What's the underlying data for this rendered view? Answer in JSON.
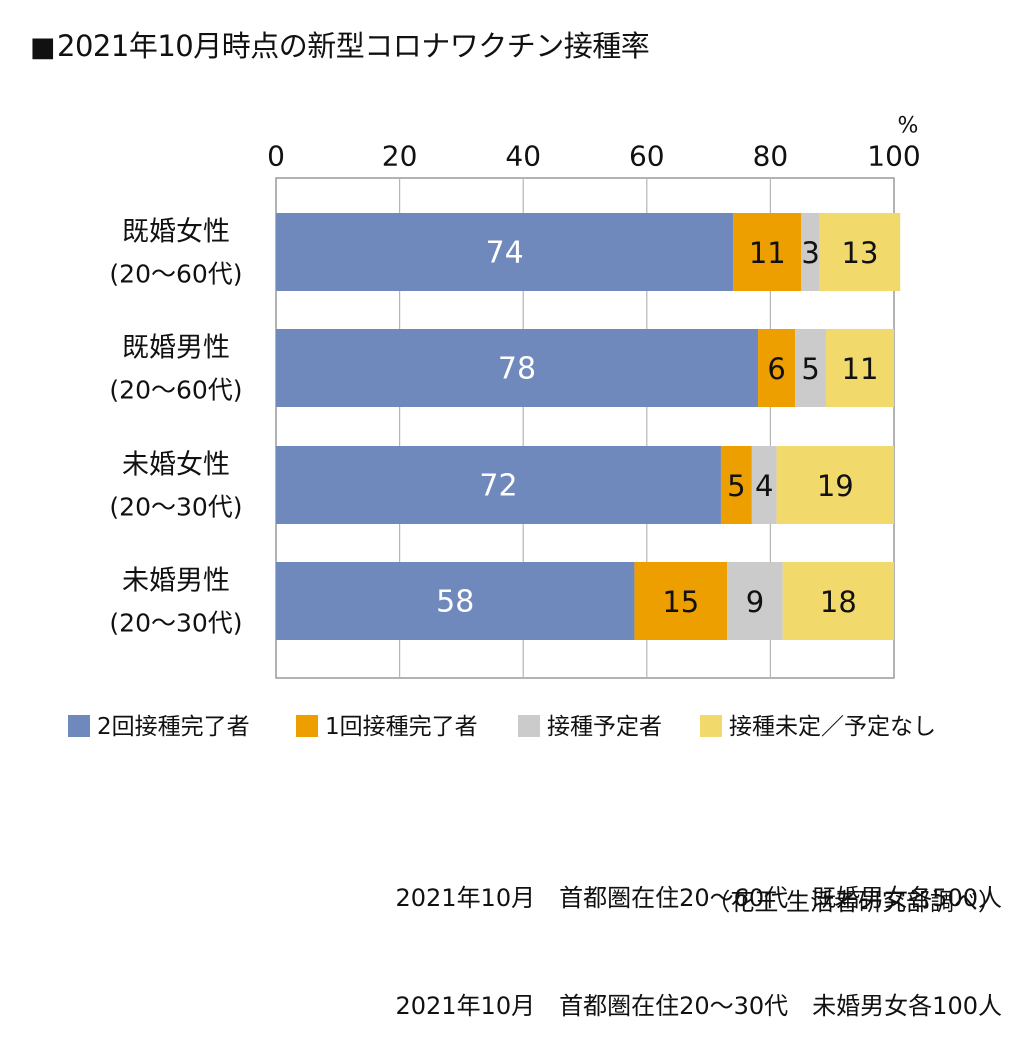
{
  "title": "2021年10月時点の新型コロナワクチン接種率",
  "title_marker": "■",
  "chart_data": {
    "type": "bar",
    "orientation": "horizontal",
    "stacked": true,
    "title": "2021年10月時点の新型コロナワクチン接種率",
    "unit_label": "%",
    "xlim": [
      0,
      100
    ],
    "x_ticks": [
      0,
      20,
      40,
      60,
      80,
      100
    ],
    "grid": true,
    "categories": [
      {
        "line1": "既婚女性",
        "line2": "(20〜60代)"
      },
      {
        "line1": "既婚男性",
        "line2": "(20〜60代)"
      },
      {
        "line1": "未婚女性",
        "line2": "(20〜30代)"
      },
      {
        "line1": "未婚男性",
        "line2": "(20〜30代)"
      }
    ],
    "series": [
      {
        "name": "2回接種完了者",
        "color": "#7089bd",
        "label_color": "#ffffff",
        "values": [
          74,
          78,
          72,
          58
        ]
      },
      {
        "name": "1回接種完了者",
        "color": "#ee9f00",
        "label_color": "#111111",
        "values": [
          11,
          6,
          5,
          15
        ]
      },
      {
        "name": "接種予定者",
        "color": "#cbcbcb",
        "label_color": "#111111",
        "values": [
          3,
          5,
          4,
          9
        ]
      },
      {
        "name": "接種未定／予定なし",
        "color": "#f2d96b",
        "label_color": "#111111",
        "values": [
          13,
          11,
          19,
          18
        ]
      }
    ],
    "legend_position": "bottom"
  },
  "notes": [
    "2021年10月　首都圏在住20〜60代　既婚男女各500人",
    "2021年10月　首都圏在住20〜30代　未婚男女各100人"
  ],
  "source": "（花王 生活者研究部調べ）"
}
